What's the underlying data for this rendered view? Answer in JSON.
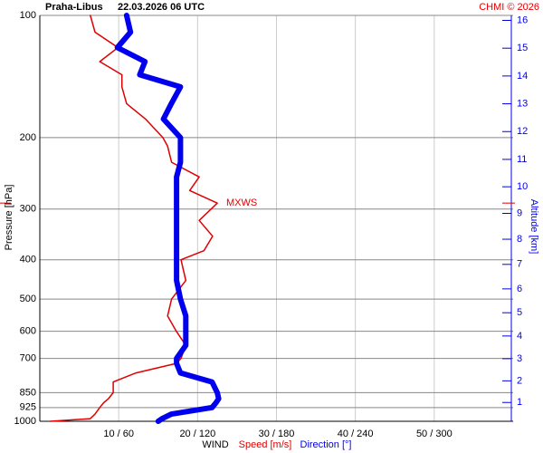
{
  "chart_data": {
    "type": "line",
    "station": "Praha-Libus",
    "title": "22.03.2026 06 UTC",
    "credit": "CHMI © 2026",
    "ylabel": "Pressure [hPa]",
    "y2label": "Altitude [km]",
    "xlabel": "WIND",
    "log_y": true,
    "ylim": [
      1000,
      100
    ],
    "yticks": [
      100,
      200,
      300,
      400,
      500,
      600,
      700,
      850,
      925,
      1000
    ],
    "y2ticks": [
      1,
      2,
      3,
      4,
      5,
      6,
      7,
      8,
      9,
      10,
      11,
      12,
      13,
      14,
      15,
      16
    ],
    "y2color": "#0000ee",
    "xlim": [
      0,
      60
    ],
    "x2lim": [
      0,
      360
    ],
    "xticks": [
      {
        "value": 10,
        "label": "10 / 60"
      },
      {
        "value": 20,
        "label": "20 / 120"
      },
      {
        "value": 30,
        "label": "30 / 180"
      },
      {
        "value": 40,
        "label": "40 / 240"
      },
      {
        "value": 50,
        "label": "50 / 300"
      }
    ],
    "grid": true,
    "pressure": [
      1000,
      985,
      960,
      925,
      900,
      880,
      850,
      800,
      760,
      720,
      700,
      650,
      600,
      550,
      500,
      450,
      400,
      380,
      350,
      320,
      290,
      270,
      250,
      230,
      210,
      200,
      180,
      165,
      150,
      140,
      130,
      120,
      110,
      100
    ],
    "series": [
      {
        "name": "Speed [m/s]",
        "color": "#e00000",
        "width": 1.5,
        "values": [
          1.3,
          6.4,
          7,
          7.6,
          8.1,
          8.7,
          9.3,
          9.3,
          12.2,
          17.3,
          17.9,
          18.5,
          17.3,
          16.2,
          16.7,
          18.5,
          17.9,
          20.8,
          21.9,
          20.2,
          22.5,
          19,
          20.2,
          16.7,
          16.2,
          15.6,
          13.4,
          11,
          10.4,
          10.4,
          7.6,
          9.9,
          7,
          6.4
        ]
      },
      {
        "name": "Direction [°]",
        "color": "#0000ee",
        "width": 6,
        "axis": "x2",
        "values": [
          90,
          93,
          100,
          131,
          134,
          136,
          135,
          131,
          107,
          104,
          104,
          111,
          111,
          111,
          107,
          104,
          104,
          104,
          104,
          104,
          104,
          104,
          104,
          107,
          107,
          107,
          94,
          100,
          107,
          76,
          80,
          59,
          69,
          66
        ]
      }
    ],
    "annotations": [
      {
        "text": "MXWS",
        "pressure": 290,
        "color": "#e00000"
      }
    ]
  }
}
